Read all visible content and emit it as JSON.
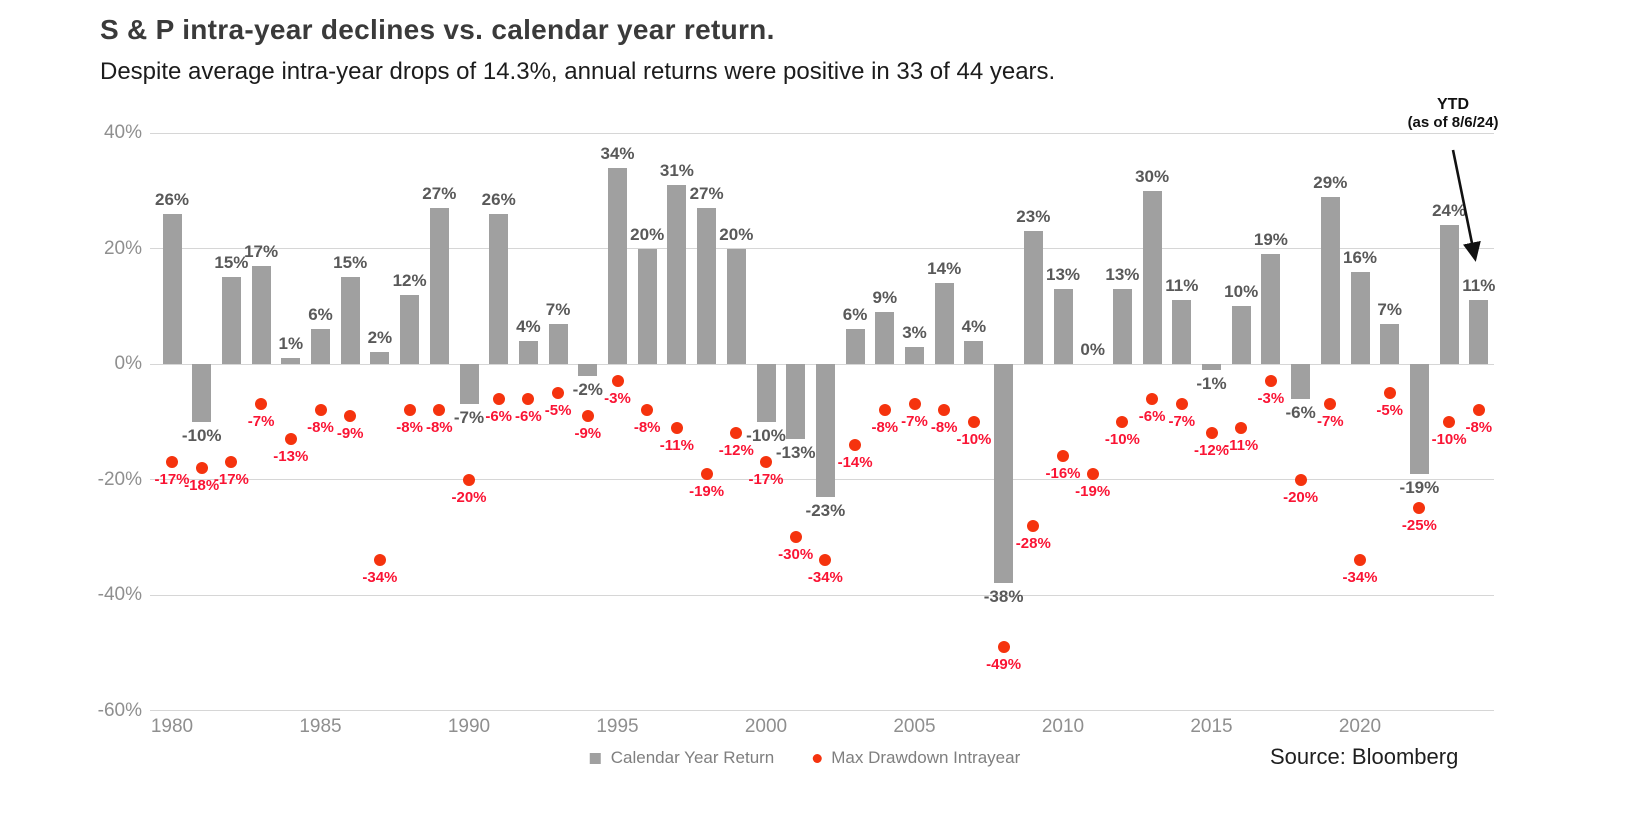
{
  "header": {
    "title": "S & P intra-year declines vs. calendar year return.",
    "subtitle": "Despite average intra-year drops of 14.3%, annual returns were positive in 33 of 44 years."
  },
  "annotation": {
    "line1": "YTD",
    "line2": "(as of 8/6/24)",
    "points_to_year": "2024"
  },
  "legend": {
    "bar_label": "Calendar Year Return",
    "dot_label": "Max Drawdown Intrayear"
  },
  "source": "Source: Bloomberg",
  "colors": {
    "bar": "#a0a0a0",
    "bar_label": "#595959",
    "dot": "#f5330e",
    "dot_label": "#fa1434",
    "axis_text": "#8f8f8f",
    "gridline": "#d6d6d6",
    "annotation_arrow": "#111111"
  },
  "chart_data": {
    "type": "bar",
    "title": "S & P intra-year declines vs. calendar year return.",
    "subtitle": "Despite average intra-year drops of 14.3%, annual returns were positive in 33 of 44 years.",
    "x": [
      1980,
      1981,
      1982,
      1983,
      1984,
      1985,
      1986,
      1987,
      1988,
      1989,
      1990,
      1991,
      1992,
      1993,
      1994,
      1995,
      1996,
      1997,
      1998,
      1999,
      2000,
      2001,
      2002,
      2003,
      2004,
      2005,
      2006,
      2007,
      2008,
      2009,
      2010,
      2011,
      2012,
      2013,
      2014,
      2015,
      2016,
      2017,
      2018,
      2019,
      2020,
      2021,
      2022,
      2023,
      2024
    ],
    "series": [
      {
        "name": "Calendar Year Return",
        "type": "bar",
        "values": [
          26,
          -10,
          15,
          17,
          1,
          6,
          15,
          2,
          12,
          27,
          -7,
          26,
          4,
          7,
          -2,
          34,
          20,
          31,
          27,
          20,
          -10,
          -13,
          -23,
          6,
          9,
          3,
          14,
          4,
          -38,
          23,
          13,
          0,
          13,
          30,
          11,
          -1,
          10,
          19,
          -6,
          29,
          16,
          7,
          -19,
          24,
          11
        ]
      },
      {
        "name": "Max Drawdown Intrayear",
        "type": "scatter",
        "values": [
          -17,
          -18,
          -17,
          -7,
          -13,
          -8,
          -9,
          -34,
          -8,
          -8,
          -20,
          -6,
          -6,
          -5,
          -9,
          -3,
          -8,
          -11,
          -19,
          -12,
          -17,
          -30,
          -34,
          -14,
          -8,
          -7,
          -8,
          -10,
          -49,
          -28,
          -16,
          -19,
          -10,
          -6,
          -7,
          -12,
          -11,
          -3,
          -20,
          -7,
          -34,
          -5,
          -25,
          -10,
          -8
        ]
      }
    ],
    "x_tick_labels": [
      "1980",
      "1985",
      "1990",
      "1995",
      "2000",
      "2005",
      "2010",
      "2015",
      "2020"
    ],
    "y_tick_labels": [
      "40%",
      "20%",
      "0%",
      "-20%",
      "-40%",
      "-60%"
    ],
    "y_tick_values": [
      40,
      20,
      0,
      -20,
      -40,
      -60
    ],
    "ylim": [
      -60,
      40
    ],
    "grid": true,
    "legend_position": "bottom-center",
    "annotations": [
      {
        "text": "YTD (as of 8/6/24)",
        "target_year": 2024,
        "target_value": "11%"
      }
    ]
  }
}
